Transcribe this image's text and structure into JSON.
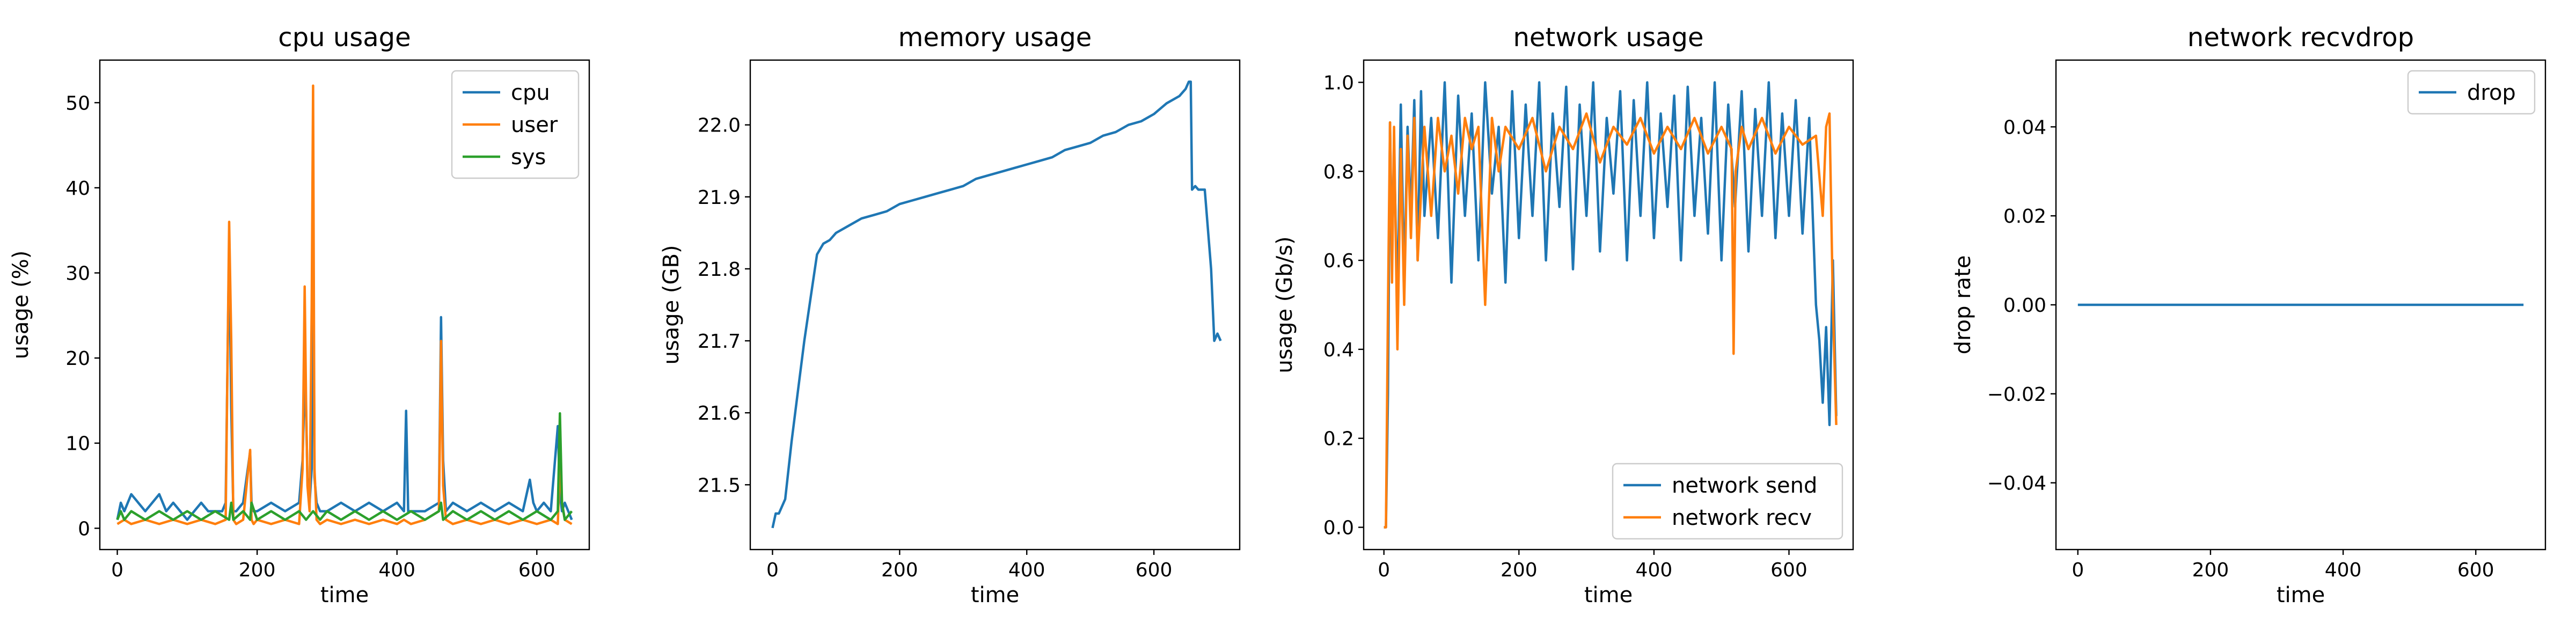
{
  "chart_data": [
    {
      "type": "line",
      "title": "cpu usage",
      "xlabel": "time",
      "ylabel": "usage (%)",
      "xlim": [
        -25,
        675
      ],
      "ylim": [
        -2.5,
        55
      ],
      "xticks": [
        0,
        200,
        400,
        600
      ],
      "yticks": [
        0,
        10,
        20,
        30,
        40,
        50
      ],
      "legend": "top-right",
      "series": [
        {
          "name": "cpu",
          "color": "#1f77b4",
          "x": [
            0,
            5,
            10,
            20,
            30,
            40,
            50,
            60,
            70,
            80,
            90,
            100,
            110,
            120,
            130,
            140,
            150,
            155,
            160,
            163,
            166,
            170,
            180,
            190,
            192,
            195,
            200,
            220,
            240,
            260,
            265,
            268,
            270,
            272,
            275,
            278,
            280,
            282,
            285,
            290,
            300,
            320,
            340,
            360,
            380,
            400,
            410,
            413,
            416,
            420,
            440,
            460,
            463,
            466,
            470,
            480,
            500,
            520,
            540,
            560,
            580,
            590,
            595,
            600,
            610,
            620,
            630,
            633,
            636,
            640,
            650
          ],
          "y": [
            1,
            3,
            2,
            4,
            3,
            2,
            3,
            4,
            2,
            3,
            2,
            1,
            2,
            3,
            2,
            2,
            2,
            3,
            34,
            14,
            2,
            2,
            3,
            9,
            3,
            2,
            2,
            3,
            2,
            3,
            8,
            17,
            14,
            6,
            3,
            7,
            40,
            6,
            3,
            2,
            2,
            3,
            2,
            3,
            2,
            3,
            2,
            13.8,
            2,
            2,
            2,
            3,
            24.8,
            8,
            2,
            3,
            2,
            3,
            2,
            3,
            2,
            5.7,
            3,
            2,
            3,
            2,
            12,
            4,
            2,
            3,
            1
          ]
        },
        {
          "name": "user",
          "color": "#ff7f0e",
          "x": [
            0,
            10,
            20,
            40,
            60,
            80,
            100,
            120,
            140,
            155,
            160,
            163,
            166,
            170,
            180,
            190,
            192,
            195,
            200,
            220,
            240,
            260,
            265,
            268,
            270,
            272,
            275,
            278,
            280,
            282,
            285,
            290,
            300,
            320,
            340,
            360,
            380,
            400,
            410,
            420,
            440,
            460,
            463,
            466,
            470,
            480,
            500,
            520,
            540,
            560,
            580,
            600,
            620,
            630,
            633,
            636,
            640,
            650
          ],
          "y": [
            0.5,
            1,
            0.5,
            1,
            0.5,
            1,
            0.5,
            1,
            0.5,
            1,
            36,
            22,
            1,
            0.5,
            1,
            9.2,
            1,
            0.5,
            1,
            0.5,
            1,
            0.5,
            7,
            28.4,
            15,
            5,
            2,
            26,
            52,
            7,
            1,
            0.5,
            1,
            0.5,
            1,
            0.5,
            1,
            0.5,
            1,
            0.5,
            1,
            2,
            22,
            5,
            1,
            0.5,
            1,
            0.5,
            1,
            0.5,
            1,
            0.5,
            1,
            0.5,
            8,
            3,
            1,
            0.5
          ]
        },
        {
          "name": "sys",
          "color": "#2ca02c",
          "x": [
            0,
            5,
            10,
            20,
            40,
            60,
            80,
            100,
            120,
            140,
            160,
            163,
            166,
            180,
            190,
            192,
            200,
            220,
            240,
            260,
            270,
            280,
            290,
            300,
            320,
            340,
            360,
            380,
            400,
            420,
            440,
            460,
            463,
            466,
            480,
            500,
            520,
            540,
            560,
            580,
            600,
            620,
            630,
            633,
            636,
            640,
            650
          ],
          "y": [
            1,
            2,
            1,
            2,
            1,
            2,
            1,
            2,
            1,
            2,
            1,
            3,
            1,
            2,
            1,
            3,
            1,
            2,
            1,
            2,
            1,
            2,
            1,
            2,
            1,
            2,
            1,
            2,
            1,
            2,
            1,
            2,
            3,
            1,
            2,
            1,
            2,
            1,
            2,
            1,
            2,
            1,
            2,
            13.5,
            3,
            1,
            2
          ]
        }
      ]
    },
    {
      "type": "line",
      "title": "memory usage",
      "xlabel": "time",
      "ylabel": "usage (GB)",
      "xlim": [
        -35,
        735
      ],
      "ylim": [
        21.41,
        22.09
      ],
      "xticks": [
        0,
        200,
        400,
        600
      ],
      "yticks": [
        21.5,
        21.6,
        21.7,
        21.8,
        21.9,
        22.0
      ],
      "series": [
        {
          "name": "",
          "color": "#1f77b4",
          "x": [
            0,
            5,
            10,
            15,
            20,
            30,
            40,
            50,
            60,
            70,
            80,
            90,
            100,
            120,
            140,
            160,
            180,
            200,
            220,
            240,
            260,
            280,
            300,
            320,
            340,
            360,
            380,
            400,
            420,
            440,
            460,
            480,
            500,
            520,
            540,
            560,
            580,
            600,
            620,
            640,
            650,
            655,
            658,
            660,
            665,
            670,
            680,
            690,
            695,
            700,
            705
          ],
          "y": [
            21.44,
            21.46,
            21.46,
            21.47,
            21.48,
            21.56,
            21.63,
            21.7,
            21.76,
            21.82,
            21.835,
            21.84,
            21.85,
            21.86,
            21.87,
            21.875,
            21.88,
            21.89,
            21.895,
            21.9,
            21.905,
            21.91,
            21.915,
            21.925,
            21.93,
            21.935,
            21.94,
            21.945,
            21.95,
            21.955,
            21.965,
            21.97,
            21.975,
            21.985,
            21.99,
            22.0,
            22.005,
            22.015,
            22.03,
            22.04,
            22.05,
            22.06,
            22.06,
            21.91,
            21.915,
            21.91,
            21.91,
            21.8,
            21.7,
            21.71,
            21.7
          ]
        }
      ]
    },
    {
      "type": "line",
      "title": "network usage",
      "xlabel": "time",
      "ylabel": "usage (Gb/s)",
      "xlim": [
        -30,
        695
      ],
      "ylim": [
        -0.05,
        1.05
      ],
      "xticks": [
        0,
        200,
        400,
        600
      ],
      "yticks": [
        0.0,
        0.2,
        0.4,
        0.6,
        0.8,
        1.0
      ],
      "legend": "bottom-right",
      "series": [
        {
          "name": "network send",
          "color": "#1f77b4",
          "x": [
            0,
            3,
            6,
            9,
            12,
            15,
            20,
            25,
            30,
            35,
            40,
            45,
            50,
            55,
            60,
            70,
            80,
            90,
            100,
            110,
            120,
            130,
            140,
            150,
            160,
            170,
            180,
            190,
            200,
            210,
            220,
            230,
            240,
            250,
            260,
            270,
            280,
            290,
            300,
            310,
            320,
            330,
            340,
            350,
            360,
            370,
            380,
            390,
            400,
            410,
            420,
            430,
            440,
            450,
            460,
            470,
            480,
            490,
            500,
            510,
            520,
            530,
            540,
            550,
            560,
            570,
            580,
            590,
            600,
            610,
            620,
            630,
            640,
            645,
            650,
            655,
            660,
            665,
            670
          ],
          "y": [
            0,
            0,
            0.3,
            0.91,
            0.6,
            0.85,
            0.5,
            0.95,
            0.55,
            0.9,
            0.7,
            0.96,
            0.6,
            0.98,
            0.7,
            0.92,
            0.65,
            1.0,
            0.55,
            0.97,
            0.7,
            0.93,
            0.6,
            1.0,
            0.75,
            0.9,
            0.55,
            0.98,
            0.65,
            0.95,
            0.7,
            1.0,
            0.6,
            0.93,
            0.72,
            0.99,
            0.58,
            0.95,
            0.7,
            1.0,
            0.62,
            0.92,
            0.75,
            0.98,
            0.6,
            0.96,
            0.7,
            1.0,
            0.65,
            0.93,
            0.72,
            0.97,
            0.6,
            0.99,
            0.7,
            0.92,
            0.66,
            1.0,
            0.6,
            0.95,
            0.72,
            0.98,
            0.62,
            0.94,
            0.7,
            1.0,
            0.65,
            0.93,
            0.7,
            0.96,
            0.66,
            0.92,
            0.5,
            0.42,
            0.28,
            0.45,
            0.23,
            0.6,
            0.25
          ]
        },
        {
          "name": "network recv",
          "color": "#ff7f0e",
          "x": [
            0,
            3,
            6,
            9,
            12,
            15,
            20,
            25,
            30,
            35,
            40,
            45,
            50,
            60,
            70,
            80,
            90,
            100,
            110,
            120,
            130,
            140,
            150,
            160,
            170,
            180,
            200,
            220,
            240,
            260,
            280,
            300,
            320,
            340,
            360,
            380,
            400,
            420,
            440,
            460,
            480,
            500,
            515,
            518,
            521,
            530,
            540,
            560,
            580,
            600,
            620,
            640,
            650,
            655,
            660,
            665,
            670
          ],
          "y": [
            0,
            0,
            0.5,
            0.91,
            0.55,
            0.9,
            0.4,
            0.85,
            0.5,
            0.88,
            0.65,
            0.92,
            0.6,
            0.9,
            0.7,
            0.92,
            0.8,
            0.88,
            0.75,
            0.92,
            0.85,
            0.9,
            0.5,
            0.92,
            0.8,
            0.9,
            0.85,
            0.92,
            0.8,
            0.9,
            0.85,
            0.93,
            0.82,
            0.9,
            0.86,
            0.92,
            0.84,
            0.9,
            0.85,
            0.92,
            0.84,
            0.9,
            0.85,
            0.39,
            0.8,
            0.9,
            0.85,
            0.92,
            0.84,
            0.9,
            0.86,
            0.88,
            0.7,
            0.9,
            0.93,
            0.5,
            0.23
          ]
        }
      ]
    },
    {
      "type": "line",
      "title": "network recvdrop",
      "xlabel": "time",
      "ylabel": "drop rate",
      "xlim": [
        -33,
        705
      ],
      "ylim": [
        -0.055,
        0.055
      ],
      "xticks": [
        0,
        200,
        400,
        600
      ],
      "yticks": [
        -0.04,
        -0.02,
        0.0,
        0.02,
        0.04
      ],
      "legend": "top-right",
      "series": [
        {
          "name": "drop",
          "color": "#1f77b4",
          "x": [
            0,
            672
          ],
          "y": [
            0,
            0
          ]
        }
      ]
    }
  ]
}
